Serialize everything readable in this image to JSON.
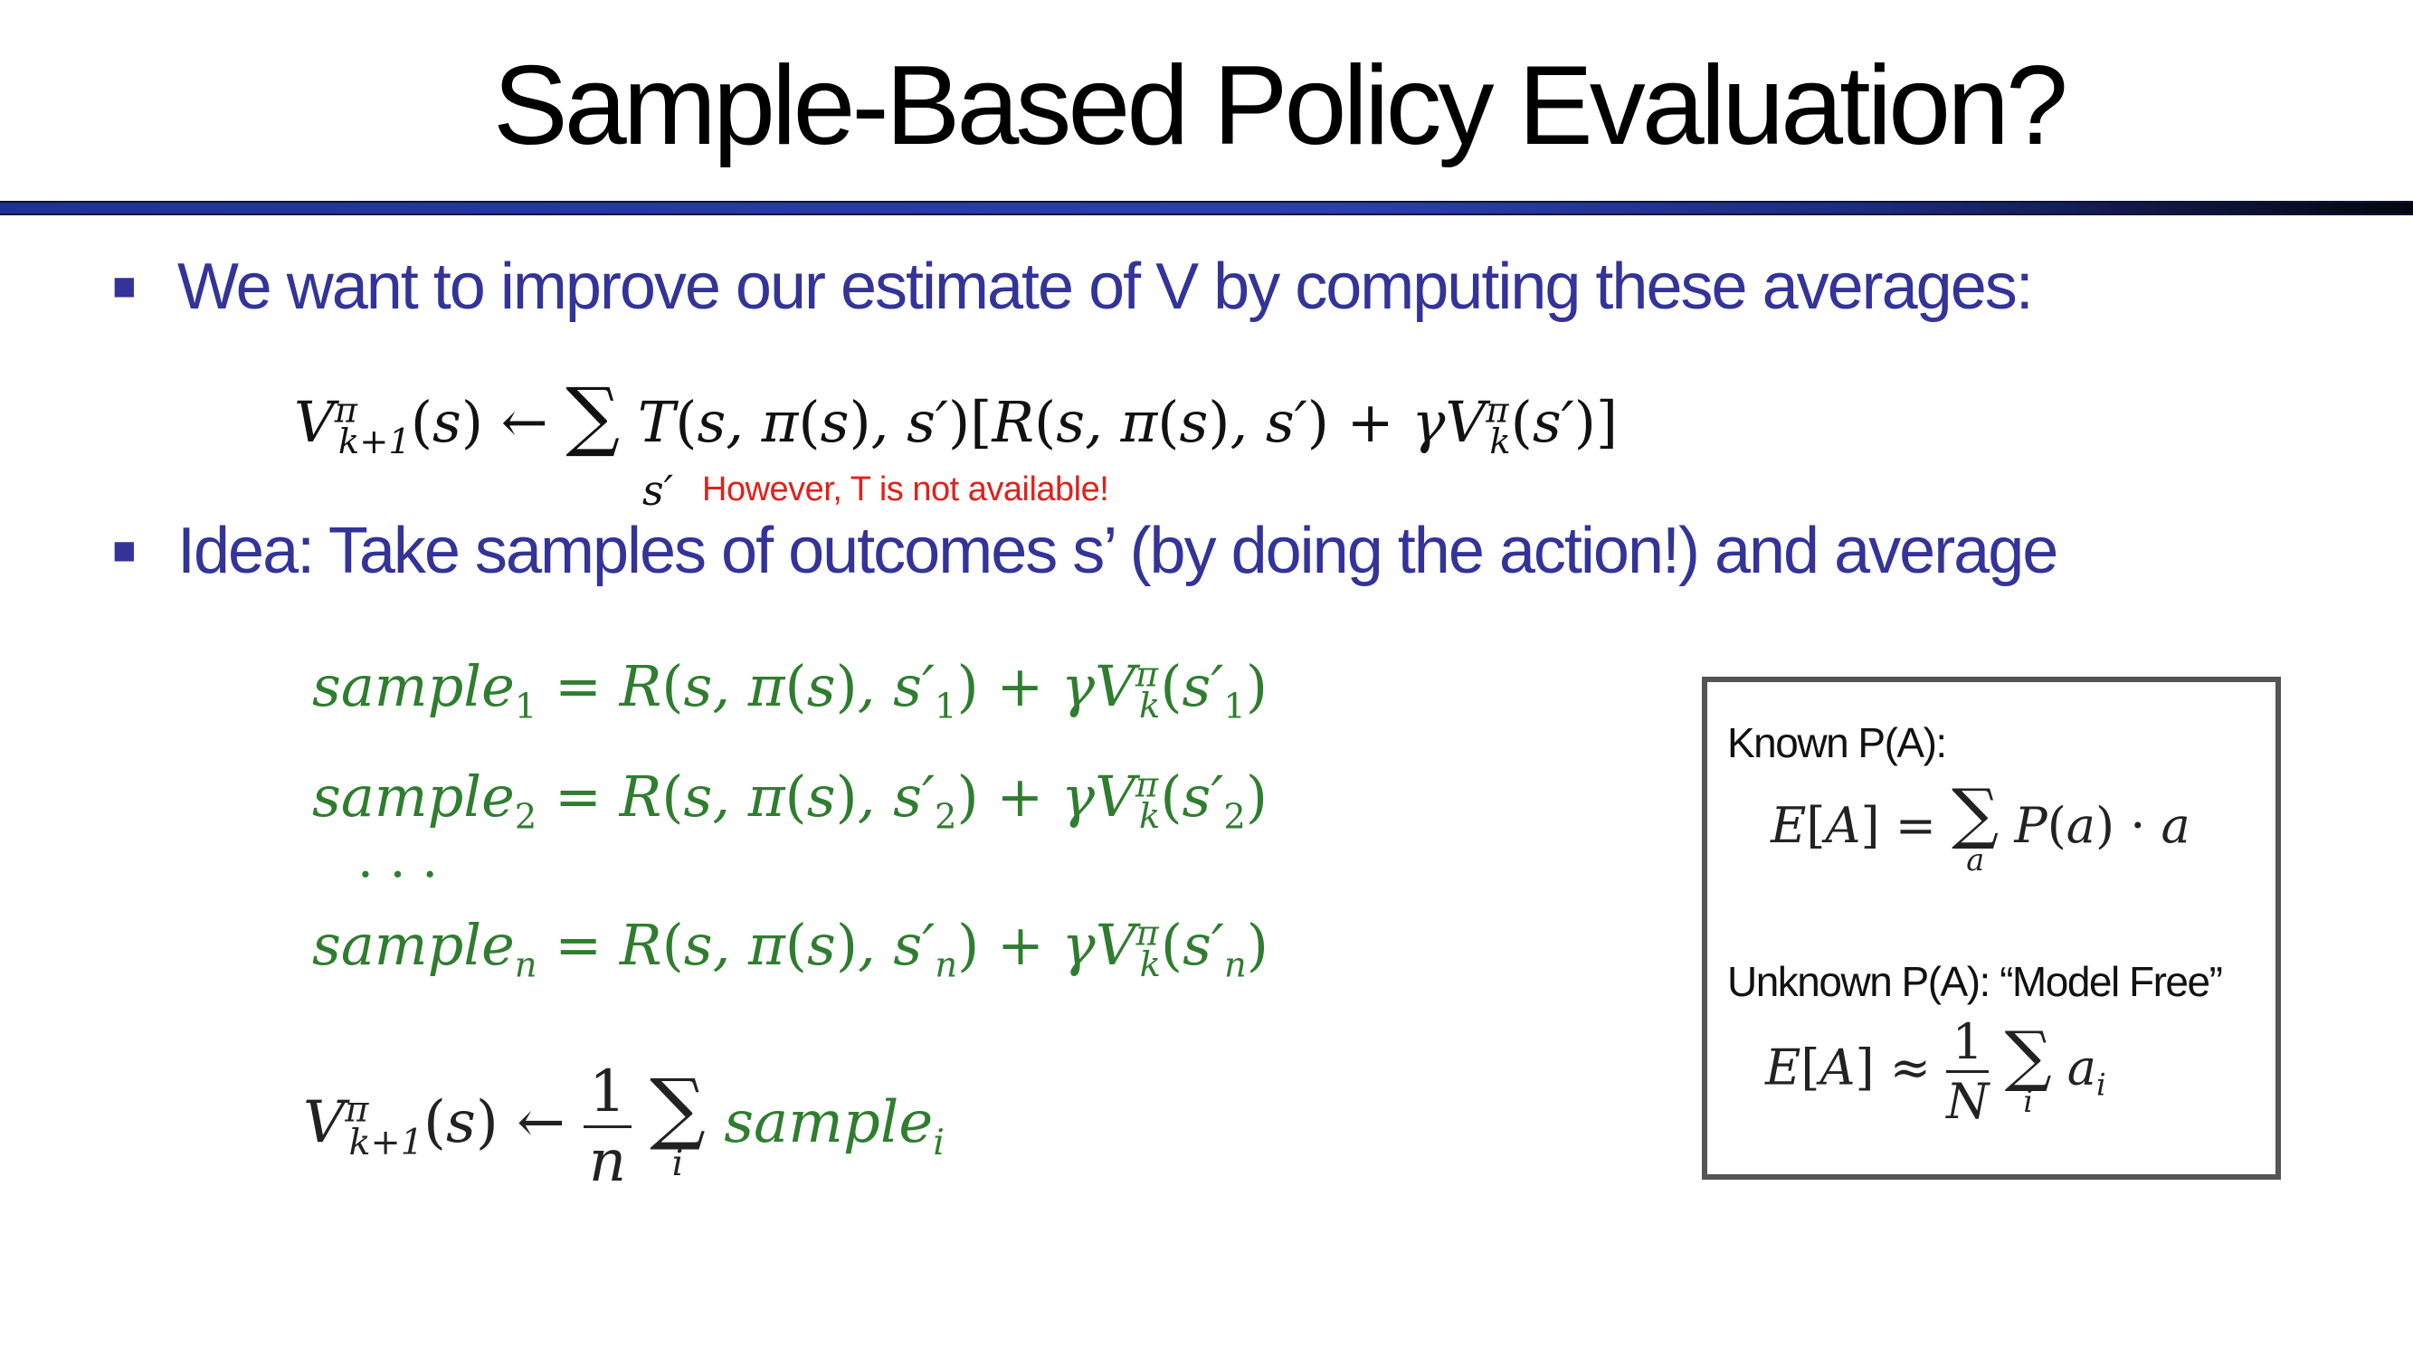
{
  "title": "Sample-Based Policy Evaluation?",
  "bullets": [
    {
      "marker": "■",
      "text": "We want to improve our estimate of V by computing these averages:"
    },
    {
      "marker": "■",
      "text": "Idea: Take samples of outcomes s’ (by doing the action!) and average"
    }
  ],
  "note": "However, T is not available!",
  "box": {
    "known_label": "Known P(A):",
    "unknown_label": "Unknown P(A): “Model Free”"
  },
  "colors": {
    "title_rule": "#2b3fb2",
    "bullet_text": "#333399",
    "sample_equations": "#2f7d2f",
    "note": "#e0211b"
  }
}
